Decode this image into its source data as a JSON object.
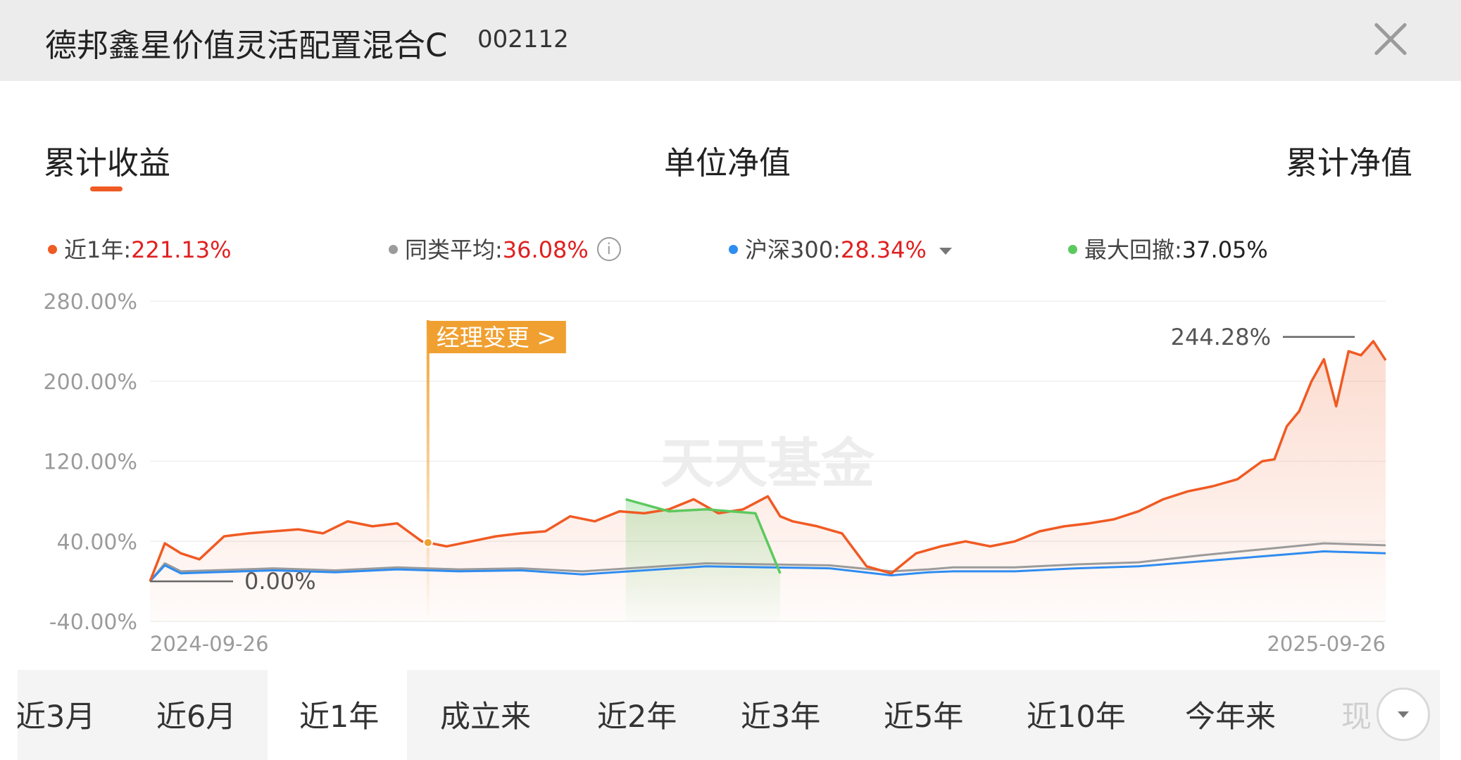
{
  "header": {
    "fund_name": "德邦鑫星价值灵活配置混合C",
    "fund_code": "002112",
    "close_icon": "close-icon"
  },
  "tabs": [
    {
      "label": "累计收益",
      "active": true
    },
    {
      "label": "单位净值",
      "active": false
    },
    {
      "label": "累计净值",
      "active": false
    }
  ],
  "legend": [
    {
      "label": "近1年:",
      "value": "221.13%",
      "color": "#f05a23"
    },
    {
      "label": "同类平均:",
      "value": "36.08%",
      "color": "#9b9b9b"
    },
    {
      "label": "沪深300:",
      "value": "28.34%",
      "color": "#2f8cf0"
    },
    {
      "label": "最大回撤:",
      "value": "37.05%",
      "color": "#5cc95e"
    }
  ],
  "watermark": "天天基金",
  "manager_change_label": "经理变更 >",
  "chart_data": {
    "type": "line",
    "x_range": [
      "2024-09-26",
      "2025-09-26"
    ],
    "ylim": [
      -40,
      280
    ],
    "y_ticks": [
      "280.00%",
      "200.00%",
      "120.00%",
      "40.00%",
      "-40.00%"
    ],
    "x_ticks": [
      "2024-09-26",
      "2025-09-26"
    ],
    "annotations": {
      "start": "0.00%",
      "peak": "244.28%"
    },
    "accent_colors": {
      "fund": "#f05a23",
      "peer": "#9b9b9b",
      "index": "#2f8cf0",
      "drawdown": "#5cc95e",
      "manager_flag": "#f0a030"
    },
    "series": [
      {
        "name": "近1年",
        "x": [
          0,
          0.012,
          0.025,
          0.04,
          0.06,
          0.08,
          0.1,
          0.12,
          0.14,
          0.16,
          0.18,
          0.2,
          0.22,
          0.24,
          0.26,
          0.28,
          0.3,
          0.32,
          0.34,
          0.36,
          0.38,
          0.4,
          0.42,
          0.44,
          0.46,
          0.48,
          0.5,
          0.51,
          0.52,
          0.54,
          0.56,
          0.58,
          0.6,
          0.62,
          0.64,
          0.66,
          0.68,
          0.7,
          0.72,
          0.74,
          0.76,
          0.78,
          0.8,
          0.82,
          0.84,
          0.86,
          0.88,
          0.9,
          0.91,
          0.92,
          0.93,
          0.94,
          0.95,
          0.96,
          0.97,
          0.98,
          0.99,
          1.0
        ],
        "values": [
          0,
          38,
          28,
          22,
          45,
          48,
          50,
          52,
          48,
          60,
          55,
          58,
          40,
          35,
          40,
          45,
          48,
          50,
          65,
          60,
          70,
          68,
          72,
          82,
          68,
          72,
          85,
          65,
          60,
          55,
          48,
          15,
          8,
          28,
          35,
          40,
          35,
          40,
          50,
          55,
          58,
          62,
          70,
          82,
          90,
          95,
          102,
          120,
          122,
          155,
          170,
          200,
          222,
          175,
          230,
          226,
          240,
          221
        ],
        "peak": 244.28,
        "final": 221.13
      },
      {
        "name": "同类平均",
        "x": [
          0,
          0.012,
          0.025,
          0.05,
          0.1,
          0.15,
          0.2,
          0.25,
          0.3,
          0.35,
          0.4,
          0.45,
          0.5,
          0.55,
          0.6,
          0.63,
          0.65,
          0.7,
          0.75,
          0.8,
          0.85,
          0.9,
          0.95,
          1.0
        ],
        "values": [
          0,
          18,
          10,
          11,
          13,
          11,
          14,
          12,
          13,
          10,
          14,
          18,
          17,
          16,
          10,
          12,
          14,
          14,
          17,
          19,
          26,
          32,
          38,
          36
        ]
      },
      {
        "name": "沪深300",
        "x": [
          0,
          0.012,
          0.025,
          0.05,
          0.1,
          0.15,
          0.2,
          0.25,
          0.3,
          0.35,
          0.4,
          0.45,
          0.5,
          0.55,
          0.6,
          0.63,
          0.65,
          0.7,
          0.75,
          0.8,
          0.85,
          0.9,
          0.95,
          1.0
        ],
        "values": [
          0,
          16,
          8,
          9,
          11,
          9,
          12,
          10,
          11,
          7,
          11,
          15,
          14,
          13,
          6,
          9,
          10,
          10,
          13,
          15,
          20,
          25,
          30,
          28
        ]
      },
      {
        "name": "最大回撤",
        "x": [
          0.385,
          0.42,
          0.45,
          0.49,
          0.51
        ],
        "values": [
          82,
          70,
          72,
          68,
          8
        ],
        "max_drawdown": "37.05%"
      }
    ],
    "manager_change_x": 0.225
  },
  "periods": [
    {
      "label": "近3月"
    },
    {
      "label": "近6月"
    },
    {
      "label": "近1年",
      "active": true
    },
    {
      "label": "成立来"
    },
    {
      "label": "近2年"
    },
    {
      "label": "近3年"
    },
    {
      "label": "近5年"
    },
    {
      "label": "近10年"
    },
    {
      "label": "今年来"
    },
    {
      "label": "现"
    }
  ]
}
